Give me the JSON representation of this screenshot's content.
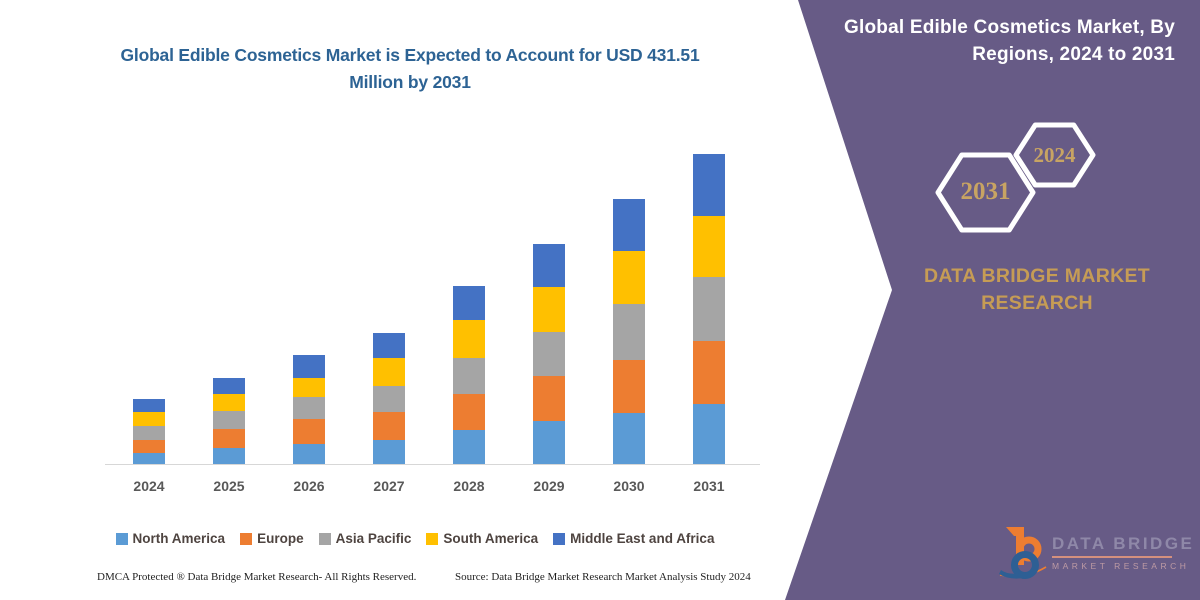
{
  "chart_data": {
    "type": "bar",
    "stacked": true,
    "title": "Global Edible Cosmetics Market is Expected to Account for USD 431.51 Million by 2031",
    "unit": "USD Million",
    "xlabel": "",
    "ylabel": "",
    "grid": false,
    "legend_position": "bottom",
    "categories": [
      "2024",
      "2025",
      "2026",
      "2027",
      "2028",
      "2029",
      "2030",
      "2031"
    ],
    "series": [
      {
        "name": "North America",
        "color": "#5B9BD5",
        "values": [
          15.5,
          22.5,
          28.0,
          34.0,
          48.0,
          60.0,
          71.0,
          83.7
        ]
      },
      {
        "name": "Europe",
        "color": "#ED7D31",
        "values": [
          18.0,
          26.0,
          34.5,
          38.0,
          50.0,
          62.0,
          74.5,
          88.3
        ]
      },
      {
        "name": "Asia Pacific",
        "color": "#A5A5A5",
        "values": [
          19.0,
          25.5,
          31.5,
          37.0,
          50.0,
          62.0,
          77.5,
          88.3
        ]
      },
      {
        "name": "South America",
        "color": "#FFC000",
        "values": [
          20.0,
          24.0,
          26.5,
          39.0,
          52.0,
          62.0,
          73.5,
          84.7
        ]
      },
      {
        "name": "Middle East and Africa",
        "color": "#4472C4",
        "values": [
          18.0,
          22.0,
          32.0,
          35.0,
          48.0,
          61.0,
          73.0,
          86.5
        ]
      }
    ],
    "totals_estimated": [
      90.5,
      120,
      152.5,
      183,
      248,
      307,
      369.5,
      431.5
    ],
    "labeled_value": "USD 431.51 Million by 2031",
    "ylim": [
      0,
      431.51
    ]
  },
  "colors": {
    "title_blue": "#2d6394",
    "panel_purple": "#675b86",
    "gold": "#c69c55",
    "axis_gray": "#d7d7d7",
    "year_label_gray": "#595959",
    "legend_text": "#4e4440"
  },
  "panel": {
    "title": "Global Edible Cosmetics Market, By\nRegions, 2024 to 2031",
    "hexagons": [
      "2031",
      "2024"
    ],
    "brand_text": "DATA BRIDGE MARKET\nRESEARCH"
  },
  "logo": {
    "name": "DATA BRIDGE",
    "tagline": "MARKET RESEARCH"
  },
  "footer": {
    "left": "DMCA Protected ® Data Bridge Market Research-  All Rights Reserved.",
    "source": "Source: Data Bridge Market Research  Market Analysis Study 2024"
  }
}
